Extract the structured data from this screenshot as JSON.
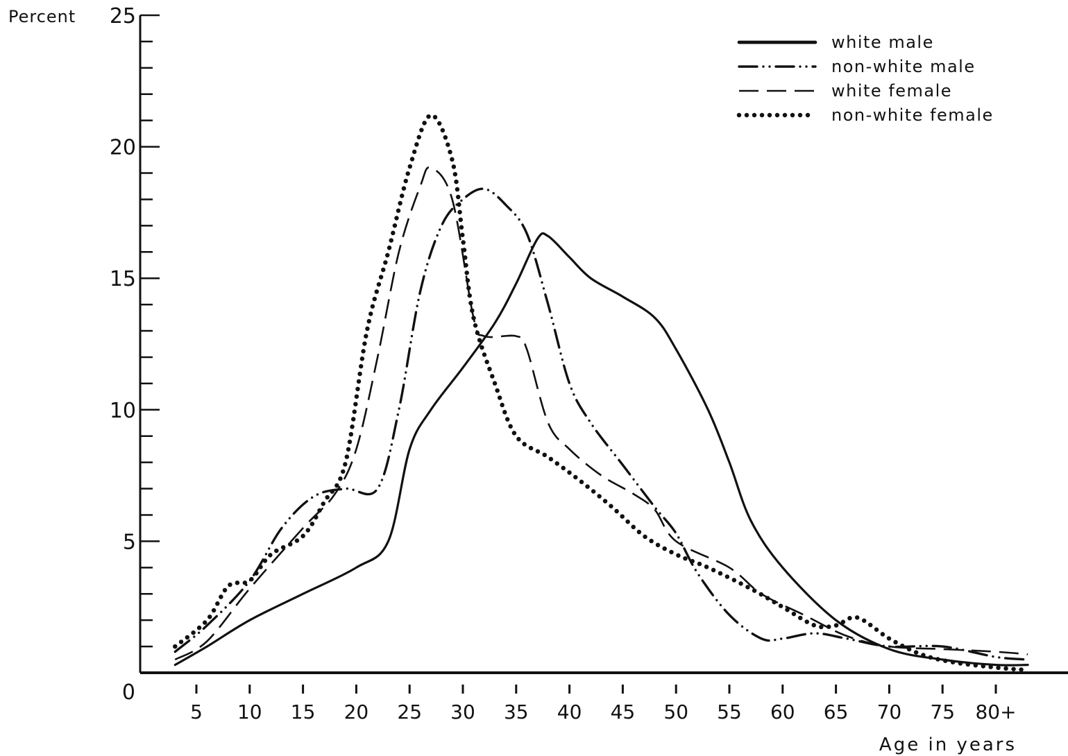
{
  "chart_data": {
    "type": "line",
    "title": "",
    "ylabel": "Percent",
    "xlabel": "Age in years",
    "ylim": [
      0,
      25
    ],
    "y_ticks": [
      0,
      5,
      10,
      15,
      20,
      25
    ],
    "y_tick_labels": [
      "0",
      "5",
      "10",
      "15",
      "20",
      "25"
    ],
    "y_minor_step": 1,
    "x_tick_labels": [
      "5",
      "10",
      "15",
      "20",
      "25",
      "30",
      "35",
      "40",
      "45",
      "50",
      "55",
      "60",
      "65",
      "70",
      "75",
      "80+"
    ],
    "x_tick_values": [
      5,
      10,
      15,
      20,
      25,
      30,
      35,
      40,
      45,
      50,
      55,
      60,
      65,
      70,
      75,
      80
    ],
    "xlim": [
      2,
      84
    ],
    "grid": false,
    "legend_position": "top-right",
    "series": [
      {
        "name": "white male",
        "style": "solid",
        "color": "#111111",
        "points": [
          [
            3,
            0.3
          ],
          [
            6,
            1.0
          ],
          [
            10,
            2.0
          ],
          [
            15,
            3.0
          ],
          [
            20,
            4.0
          ],
          [
            23,
            5.0
          ],
          [
            25,
            8.5
          ],
          [
            27,
            10.0
          ],
          [
            30,
            11.6
          ],
          [
            33,
            13.3
          ],
          [
            35,
            14.8
          ],
          [
            37,
            16.5
          ],
          [
            38,
            16.6
          ],
          [
            40,
            15.8
          ],
          [
            42,
            15.0
          ],
          [
            45,
            14.3
          ],
          [
            48,
            13.5
          ],
          [
            50,
            12.3
          ],
          [
            53,
            10.0
          ],
          [
            55,
            8.0
          ],
          [
            57,
            5.8
          ],
          [
            60,
            4.0
          ],
          [
            65,
            2.0
          ],
          [
            70,
            0.9
          ],
          [
            75,
            0.5
          ],
          [
            80,
            0.3
          ],
          [
            83,
            0.3
          ]
        ]
      },
      {
        "name": "non-white male",
        "style": "dash-dot-dot",
        "color": "#111111",
        "points": [
          [
            3,
            0.8
          ],
          [
            6,
            1.8
          ],
          [
            10,
            3.5
          ],
          [
            13,
            5.5
          ],
          [
            16,
            6.7
          ],
          [
            19,
            7.0
          ],
          [
            22,
            7.0
          ],
          [
            24,
            10.0
          ],
          [
            26,
            14.5
          ],
          [
            28,
            17.0
          ],
          [
            30,
            18.0
          ],
          [
            32,
            18.4
          ],
          [
            34,
            17.8
          ],
          [
            36,
            16.7
          ],
          [
            38,
            14.0
          ],
          [
            40,
            11.0
          ],
          [
            42,
            9.5
          ],
          [
            45,
            7.9
          ],
          [
            48,
            6.3
          ],
          [
            50,
            5.3
          ],
          [
            52,
            3.8
          ],
          [
            55,
            2.2
          ],
          [
            58,
            1.3
          ],
          [
            60,
            1.3
          ],
          [
            63,
            1.5
          ],
          [
            66,
            1.3
          ],
          [
            70,
            1.0
          ],
          [
            75,
            1.0
          ],
          [
            80,
            0.6
          ],
          [
            83,
            0.5
          ]
        ]
      },
      {
        "name": "white female",
        "style": "dashed",
        "color": "#111111",
        "points": [
          [
            3,
            0.5
          ],
          [
            6,
            1.2
          ],
          [
            10,
            3.2
          ],
          [
            15,
            5.5
          ],
          [
            18,
            6.8
          ],
          [
            20,
            8.5
          ],
          [
            22,
            12.0
          ],
          [
            24,
            16.0
          ],
          [
            26,
            18.5
          ],
          [
            27,
            19.2
          ],
          [
            29,
            18.0
          ],
          [
            31,
            13.5
          ],
          [
            32,
            12.8
          ],
          [
            35,
            12.8
          ],
          [
            36,
            12.3
          ],
          [
            38,
            9.5
          ],
          [
            40,
            8.5
          ],
          [
            43,
            7.5
          ],
          [
            46,
            6.8
          ],
          [
            48,
            6.2
          ],
          [
            50,
            5.0
          ],
          [
            55,
            4.0
          ],
          [
            58,
            3.0
          ],
          [
            62,
            2.2
          ],
          [
            66,
            1.4
          ],
          [
            70,
            1.0
          ],
          [
            75,
            0.9
          ],
          [
            80,
            0.8
          ],
          [
            83,
            0.7
          ]
        ]
      },
      {
        "name": "non-white female",
        "style": "dotted",
        "color": "#111111",
        "points": [
          [
            3,
            1.0
          ],
          [
            6,
            2.0
          ],
          [
            8,
            3.3
          ],
          [
            10,
            3.5
          ],
          [
            12,
            4.5
          ],
          [
            15,
            5.2
          ],
          [
            17,
            6.5
          ],
          [
            19,
            8.0
          ],
          [
            21,
            13.0
          ],
          [
            23,
            16.0
          ],
          [
            25,
            19.2
          ],
          [
            27,
            21.2
          ],
          [
            29,
            19.5
          ],
          [
            30,
            16.5
          ],
          [
            31,
            13.5
          ],
          [
            33,
            11.0
          ],
          [
            35,
            9.0
          ],
          [
            38,
            8.2
          ],
          [
            41,
            7.3
          ],
          [
            44,
            6.3
          ],
          [
            47,
            5.2
          ],
          [
            50,
            4.5
          ],
          [
            53,
            4.0
          ],
          [
            57,
            3.2
          ],
          [
            60,
            2.5
          ],
          [
            63,
            1.8
          ],
          [
            65,
            1.8
          ],
          [
            67,
            2.1
          ],
          [
            70,
            1.3
          ],
          [
            73,
            0.7
          ],
          [
            76,
            0.4
          ],
          [
            80,
            0.2
          ],
          [
            83,
            0.1
          ]
        ]
      }
    ]
  }
}
